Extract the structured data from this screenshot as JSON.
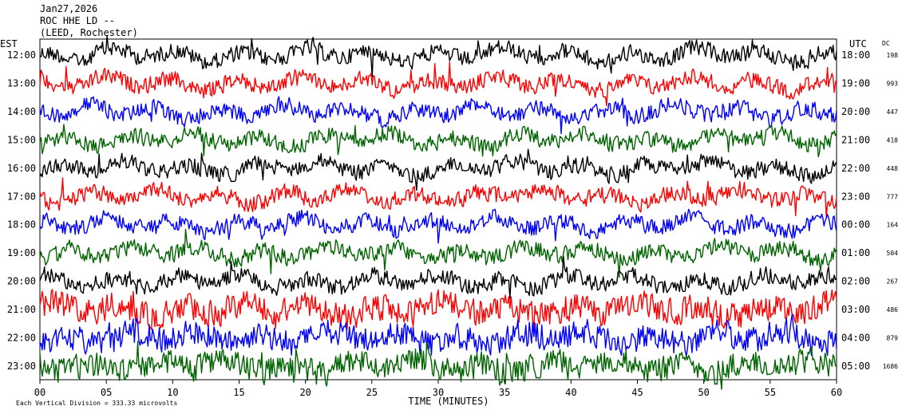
{
  "header": {
    "date": "Jan27,2026",
    "station": "ROC HHE LD --",
    "site": "(LEED, Rochester)"
  },
  "chart_data": {
    "type": "line",
    "title": "",
    "left_axis_label": "EST",
    "right_axis_label": "UTC",
    "dc_label": "DC",
    "xlabel": "TIME (MINUTES)",
    "x_ticks": [
      "00",
      "05",
      "10",
      "15",
      "20",
      "25",
      "30",
      "35",
      "40",
      "45",
      "50",
      "55",
      "60"
    ],
    "xlim": [
      0,
      60
    ],
    "rows": [
      {
        "est": "12:00",
        "utc": "18:00",
        "dc": "198",
        "color": "#000000"
      },
      {
        "est": "13:00",
        "utc": "19:00",
        "dc": "993",
        "color": "#ff0000"
      },
      {
        "est": "14:00",
        "utc": "20:00",
        "dc": "447",
        "color": "#0000ff"
      },
      {
        "est": "15:00",
        "utc": "21:00",
        "dc": "418",
        "color": "#006400"
      },
      {
        "est": "16:00",
        "utc": "22:00",
        "dc": "448",
        "color": "#000000"
      },
      {
        "est": "17:00",
        "utc": "23:00",
        "dc": "777",
        "color": "#ff0000"
      },
      {
        "est": "18:00",
        "utc": "00:00",
        "dc": "164",
        "color": "#0000ff"
      },
      {
        "est": "19:00",
        "utc": "01:00",
        "dc": "504",
        "color": "#006400"
      },
      {
        "est": "20:00",
        "utc": "02:00",
        "dc": "267",
        "color": "#000000"
      },
      {
        "est": "21:00",
        "utc": "03:00",
        "dc": "486",
        "color": "#ff0000"
      },
      {
        "est": "22:00",
        "utc": "04:00",
        "dc": "879",
        "color": "#0000ff"
      },
      {
        "est": "23:00",
        "utc": "05:00",
        "dc": "1686",
        "color": "#006400"
      }
    ],
    "scale_note": "Each Vertical Division = 333.33 microvolts",
    "grid": false
  }
}
